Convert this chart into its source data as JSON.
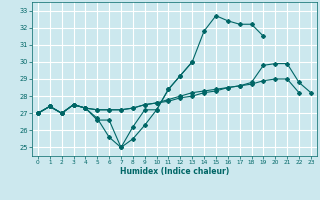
{
  "xlabel": "Humidex (Indice chaleur)",
  "xlim": [
    -0.5,
    23.5
  ],
  "ylim": [
    24.5,
    33.5
  ],
  "yticks": [
    25,
    26,
    27,
    28,
    29,
    30,
    31,
    32,
    33
  ],
  "xticks": [
    0,
    1,
    2,
    3,
    4,
    5,
    6,
    7,
    8,
    9,
    10,
    11,
    12,
    13,
    14,
    15,
    16,
    17,
    18,
    19,
    20,
    21,
    22,
    23
  ],
  "background_color": "#cce8ee",
  "grid_color": "#ffffff",
  "line_color": "#006666",
  "series": [
    [
      27.0,
      27.4,
      27.0,
      27.5,
      27.3,
      26.6,
      26.6,
      25.0,
      26.2,
      27.2,
      27.2,
      28.4,
      29.2,
      30.0,
      31.8,
      32.7,
      32.4,
      32.2,
      32.2,
      31.5,
      null,
      null,
      null,
      null
    ],
    [
      27.0,
      27.4,
      27.0,
      27.5,
      27.3,
      26.7,
      25.6,
      25.0,
      25.5,
      26.3,
      27.2,
      28.4,
      29.2,
      30.0,
      null,
      null,
      null,
      null,
      null,
      null,
      null,
      null,
      null,
      null
    ],
    [
      27.0,
      27.4,
      27.0,
      27.5,
      27.3,
      27.2,
      27.2,
      27.2,
      27.3,
      27.5,
      27.6,
      27.8,
      28.0,
      28.2,
      28.3,
      28.4,
      28.5,
      28.6,
      28.7,
      28.9,
      29.0,
      29.0,
      28.2,
      null
    ],
    [
      27.0,
      27.4,
      27.0,
      27.5,
      27.3,
      27.2,
      27.2,
      27.2,
      27.3,
      27.5,
      27.6,
      27.7,
      27.9,
      28.0,
      28.2,
      28.3,
      28.5,
      28.6,
      28.8,
      29.8,
      29.9,
      29.9,
      28.8,
      28.2
    ]
  ]
}
